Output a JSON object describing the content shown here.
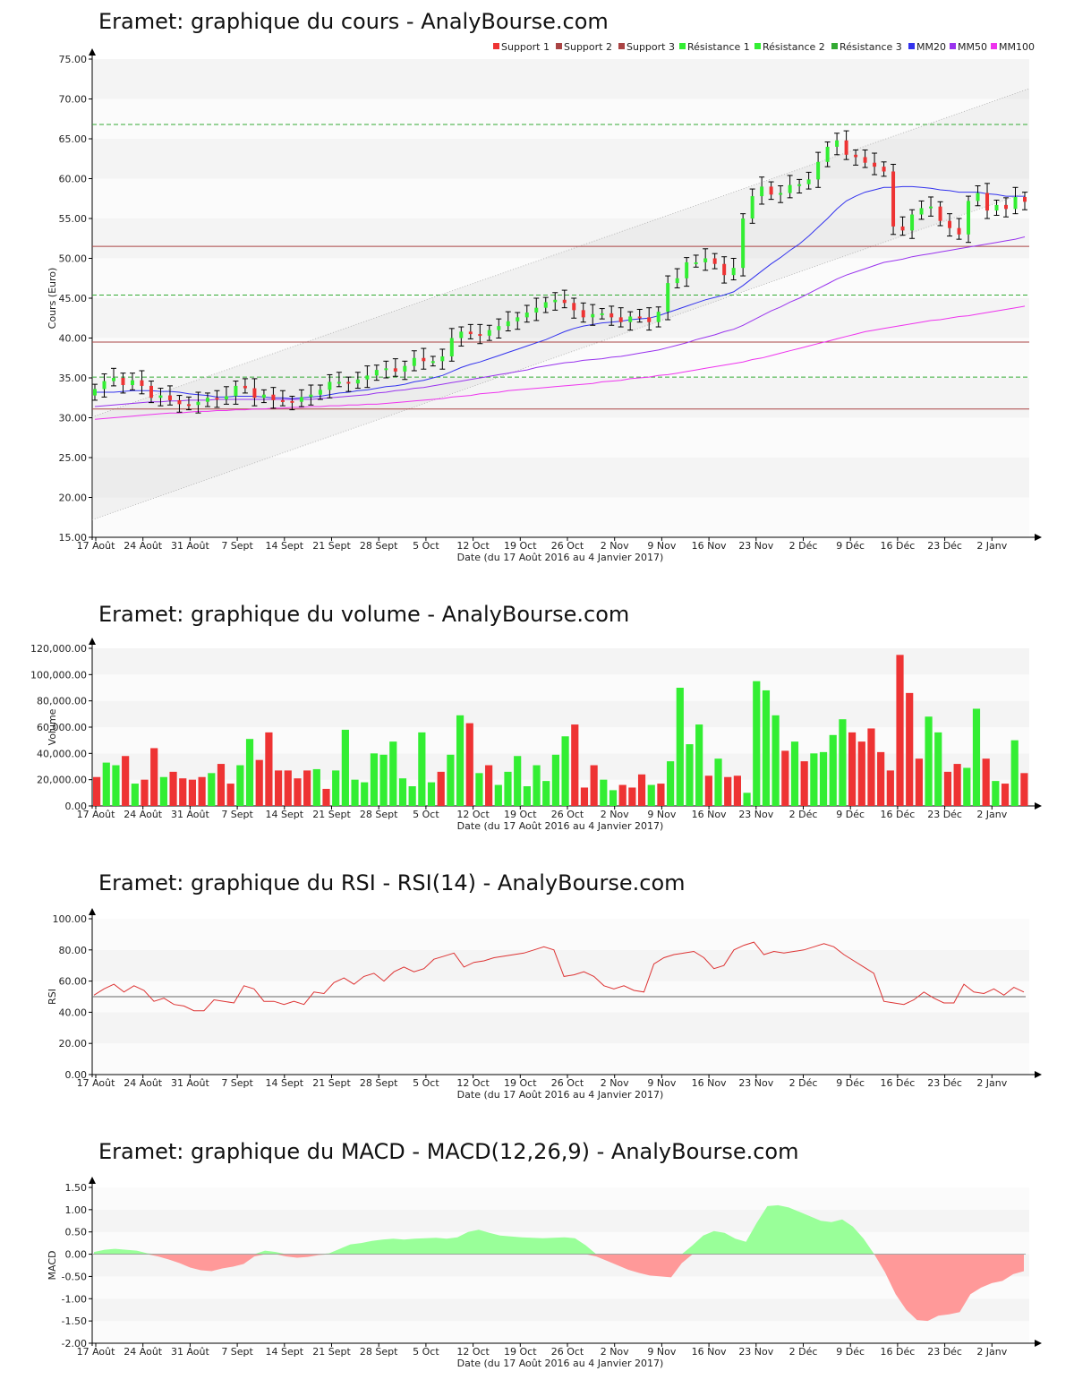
{
  "x_axis": {
    "ticks": [
      "17 Août",
      "24 Août",
      "31 Août",
      "7 Sept",
      "14 Sept",
      "21 Sept",
      "28 Sept",
      "5 Oct",
      "12 Oct",
      "19 Oct",
      "26 Oct",
      "2 Nov",
      "9 Nov",
      "16 Nov",
      "23 Nov",
      "2 Déc",
      "9 Déc",
      "16 Déc",
      "23 Déc",
      "2 Janv"
    ],
    "label": "Date (du 17 Août 2016 au 4 Janvier 2017)"
  },
  "colors": {
    "up": "#33ee33",
    "down": "#ee3333",
    "support": "#aa4444",
    "resistance": "#33aa33",
    "mm20": "#3333ee",
    "mm50": "#9933ee",
    "mm100": "#ee33ee"
  },
  "charts": {
    "price": {
      "title": "Eramet: graphique du cours - AnalyBourse.com"
    },
    "volume": {
      "title": "Eramet: graphique du volume - AnalyBourse.com"
    },
    "rsi": {
      "title": "Eramet: graphique du RSI - RSI(14) - AnalyBourse.com"
    },
    "macd": {
      "title": "Eramet: graphique du MACD - MACD(12,26,9) - AnalyBourse.com"
    }
  },
  "chart_data": [
    {
      "type": "candlestick",
      "title": "Eramet: graphique du cours - AnalyBourse.com",
      "ylabel": "Cours (Euro)",
      "xlabel": "Date (du 17 Août 2016 au 4 Janvier 2017)",
      "ylim": [
        15,
        75
      ],
      "yticks": [
        "15.00",
        "20.00",
        "25.00",
        "30.00",
        "35.00",
        "40.00",
        "45.00",
        "50.00",
        "55.00",
        "60.00",
        "65.00",
        "70.00",
        "75.00"
      ],
      "legend": [
        "Support 1",
        "Support 2",
        "Support 3",
        "Résistance 1",
        "Résistance 2",
        "Résistance 3",
        "MM20",
        "MM50",
        "MM100"
      ],
      "legend_position": "top-right",
      "support": [
        51.5,
        39.5,
        31.1
      ],
      "resistance": [
        66.8,
        45.4,
        35.1
      ],
      "closes": [
        33.6,
        34.6,
        35.0,
        34.1,
        34.7,
        34.0,
        32.5,
        32.8,
        32.2,
        31.7,
        31.6,
        32.0,
        32.5,
        32.3,
        32.7,
        34.0,
        33.7,
        32.5,
        32.9,
        32.2,
        32.1,
        32.0,
        32.6,
        32.9,
        33.5,
        34.5,
        34.5,
        34.3,
        34.8,
        35.3,
        36.0,
        36.2,
        35.8,
        36.5,
        37.5,
        37.1,
        37.1,
        37.7,
        40.0,
        40.8,
        40.5,
        40.3,
        41.0,
        41.5,
        42.1,
        42.6,
        43.2,
        43.8,
        44.5,
        44.8,
        44.4,
        43.5,
        42.6,
        43.0,
        43.1,
        42.6,
        42.0,
        42.7,
        42.6,
        42.0,
        43.3,
        46.9,
        47.5,
        49.5,
        49.5,
        50.0,
        49.3,
        47.9,
        48.8,
        55.0,
        57.8,
        59.0,
        58.0,
        58.2,
        59.2,
        59.3,
        59.9,
        62.1,
        64.0,
        64.8,
        63.0,
        62.7,
        62.0,
        61.5,
        60.9,
        54.0,
        53.5,
        55.5,
        56.3,
        56.5,
        54.7,
        53.8,
        53.0,
        57.2,
        58.2,
        56.0,
        56.7,
        56.2,
        57.7,
        57.1
      ],
      "mm20": [
        33.2,
        33.2,
        33.2,
        33.3,
        33.4,
        33.4,
        33.4,
        33.3,
        33.3,
        33.2,
        33.0,
        32.9,
        32.8,
        32.6,
        32.6,
        32.7,
        32.7,
        32.7,
        32.6,
        32.5,
        32.5,
        32.4,
        32.5,
        32.6,
        32.7,
        32.9,
        33.1,
        33.2,
        33.4,
        33.5,
        33.7,
        33.9,
        34.0,
        34.2,
        34.5,
        34.7,
        35.0,
        35.3,
        35.8,
        36.3,
        36.7,
        37.0,
        37.4,
        37.8,
        38.2,
        38.6,
        39.0,
        39.4,
        39.8,
        40.3,
        40.8,
        41.2,
        41.5,
        41.7,
        41.9,
        42.0,
        42.1,
        42.3,
        42.4,
        42.5,
        42.8,
        43.2,
        43.6,
        44.0,
        44.4,
        44.8,
        45.1,
        45.4,
        45.8,
        46.6,
        47.5,
        48.4,
        49.3,
        50.1,
        51.0,
        51.8,
        52.8,
        53.9,
        55.0,
        56.2,
        57.2,
        57.8,
        58.3,
        58.6,
        58.9,
        58.9,
        59.0,
        59.0,
        58.9,
        58.8,
        58.6,
        58.5,
        58.3,
        58.3,
        58.3,
        58.1,
        58.0,
        57.8,
        57.8,
        57.8
      ],
      "mm50": [
        31.4,
        31.5,
        31.6,
        31.7,
        31.8,
        31.9,
        32.0,
        32.0,
        32.1,
        32.1,
        32.2,
        32.2,
        32.2,
        32.3,
        32.3,
        32.3,
        32.3,
        32.3,
        32.3,
        32.3,
        32.3,
        32.3,
        32.3,
        32.3,
        32.4,
        32.5,
        32.6,
        32.7,
        32.8,
        32.9,
        33.1,
        33.2,
        33.4,
        33.5,
        33.7,
        33.8,
        34.0,
        34.2,
        34.4,
        34.6,
        34.8,
        35.0,
        35.2,
        35.4,
        35.6,
        35.8,
        36.0,
        36.3,
        36.5,
        36.7,
        36.9,
        37.0,
        37.2,
        37.3,
        37.4,
        37.6,
        37.7,
        37.9,
        38.1,
        38.3,
        38.5,
        38.8,
        39.1,
        39.4,
        39.8,
        40.1,
        40.4,
        40.8,
        41.1,
        41.6,
        42.2,
        42.8,
        43.4,
        43.9,
        44.5,
        45.0,
        45.6,
        46.2,
        46.8,
        47.4,
        47.9,
        48.3,
        48.7,
        49.1,
        49.5,
        49.7,
        49.9,
        50.2,
        50.4,
        50.6,
        50.8,
        51.0,
        51.2,
        51.4,
        51.6,
        51.8,
        52.0,
        52.2,
        52.4,
        52.7
      ],
      "mm100": [
        29.8,
        29.9,
        30.0,
        30.1,
        30.2,
        30.3,
        30.4,
        30.5,
        30.6,
        30.6,
        30.7,
        30.8,
        30.8,
        30.9,
        30.9,
        31.0,
        31.0,
        31.1,
        31.1,
        31.2,
        31.2,
        31.3,
        31.3,
        31.4,
        31.4,
        31.5,
        31.5,
        31.6,
        31.6,
        31.7,
        31.7,
        31.8,
        31.9,
        32.0,
        32.1,
        32.2,
        32.3,
        32.4,
        32.6,
        32.7,
        32.8,
        33.0,
        33.1,
        33.2,
        33.4,
        33.5,
        33.6,
        33.7,
        33.8,
        33.9,
        34.0,
        34.1,
        34.2,
        34.3,
        34.5,
        34.6,
        34.7,
        34.9,
        35.0,
        35.1,
        35.3,
        35.4,
        35.6,
        35.8,
        36.0,
        36.2,
        36.4,
        36.6,
        36.8,
        37.0,
        37.3,
        37.5,
        37.8,
        38.1,
        38.4,
        38.7,
        39.0,
        39.3,
        39.6,
        39.9,
        40.2,
        40.5,
        40.8,
        41.0,
        41.2,
        41.4,
        41.6,
        41.8,
        42.0,
        42.2,
        42.3,
        42.5,
        42.7,
        42.8,
        43.0,
        43.2,
        43.4,
        43.6,
        43.8,
        44.0
      ],
      "trend_channel": {
        "upper": [
          30.1,
          71.3
        ],
        "lower": [
          17.2,
          58.4
        ]
      }
    },
    {
      "type": "bar",
      "title": "Eramet: graphique du volume - AnalyBourse.com",
      "ylabel": "Volume",
      "xlabel": "Date (du 17 Août 2016 au 4 Janvier 2017)",
      "ylim": [
        0,
        120000
      ],
      "yticks": [
        "0.00",
        "20,000.00",
        "40,000.00",
        "60,000.00",
        "80,000.00",
        "100,000.00",
        "120,000.00"
      ],
      "values": [
        22000,
        33000,
        31000,
        38000,
        17000,
        20000,
        44000,
        22000,
        26000,
        21000,
        20000,
        22000,
        25000,
        32000,
        17000,
        31000,
        51000,
        35000,
        56000,
        27000,
        27000,
        21000,
        27000,
        28000,
        13000,
        27000,
        58000,
        20000,
        18000,
        40000,
        39000,
        49000,
        21000,
        15000,
        56000,
        18000,
        26000,
        39000,
        69000,
        63000,
        25000,
        31000,
        16000,
        26000,
        38000,
        15000,
        31000,
        19000,
        39000,
        53000,
        62000,
        14000,
        31000,
        20000,
        12000,
        16000,
        14000,
        24000,
        16000,
        17000,
        34000,
        90000,
        47000,
        62000,
        23000,
        36000,
        22000,
        23000,
        10000,
        95000,
        88000,
        69000,
        42000,
        49000,
        34000,
        40000,
        41000,
        54000,
        66000,
        56000,
        49000,
        59000,
        41000,
        27000,
        115000,
        86000,
        36000,
        68000,
        56000,
        26000,
        32000,
        29000,
        74000,
        36000,
        19000,
        17000,
        50000,
        25000
      ],
      "up": [
        0,
        1,
        1,
        0,
        1,
        0,
        0,
        1,
        0,
        0,
        0,
        0,
        1,
        0,
        0,
        1,
        1,
        0,
        0,
        0,
        0,
        0,
        0,
        1,
        0,
        1,
        1,
        1,
        1,
        1,
        1,
        1,
        1,
        1,
        1,
        1,
        0,
        1,
        1,
        0,
        1,
        0,
        1,
        1,
        1,
        1,
        1,
        1,
        1,
        1,
        0,
        0,
        0,
        1,
        1,
        0,
        0,
        0,
        1,
        0,
        1,
        1,
        1,
        1,
        0,
        1,
        0,
        0,
        1,
        1,
        1,
        1,
        0,
        1,
        0,
        1,
        1,
        1,
        1,
        0,
        0,
        0,
        0,
        0,
        0,
        0,
        0,
        1,
        1,
        0,
        0,
        1,
        1,
        0,
        1,
        0,
        1,
        0
      ]
    },
    {
      "type": "line",
      "title": "Eramet: graphique du RSI - RSI(14) - AnalyBourse.com",
      "ylabel": "RSI",
      "xlabel": "Date (du 17 Août 2016 au 4 Janvier 2017)",
      "ylim": [
        0,
        100
      ],
      "yticks": [
        "0.00",
        "20.00",
        "40.00",
        "60.00",
        "80.00",
        "100.00"
      ],
      "reference": 50,
      "values": [
        51,
        55,
        58,
        53,
        57,
        54,
        47,
        49,
        45,
        44,
        41,
        41,
        48,
        47,
        46,
        57,
        55,
        47,
        47,
        45,
        47,
        45,
        53,
        52,
        59,
        62,
        58,
        63,
        65,
        60,
        66,
        69,
        66,
        68,
        74,
        76,
        78,
        69,
        72,
        73,
        75,
        76,
        77,
        78,
        80,
        82,
        80,
        63,
        64,
        66,
        63,
        57,
        55,
        57,
        54,
        53,
        71,
        75,
        77,
        78,
        79,
        75,
        68,
        70,
        80,
        83,
        85,
        77,
        79,
        78,
        79,
        80,
        82,
        84,
        82,
        77,
        73,
        69,
        65,
        47,
        46,
        45,
        48,
        53,
        49,
        46,
        46,
        58,
        53,
        52,
        55,
        51,
        56,
        53
      ],
      "color": "#dd3333"
    },
    {
      "type": "area",
      "title": "Eramet: graphique du MACD - MACD(12,26,9) - AnalyBourse.com",
      "ylabel": "MACD",
      "xlabel": "Date (du 17 Août 2016 au 4 Janvier 2017)",
      "ylim": [
        -2,
        1.5
      ],
      "yticks": [
        "-2.00",
        "-1.50",
        "-1.00",
        "-0.50",
        "0.00",
        "0.50",
        "1.00",
        "1.50"
      ],
      "values": [
        0.05,
        0.1,
        0.12,
        0.1,
        0.08,
        0.02,
        -0.05,
        -0.12,
        -0.2,
        -0.3,
        -0.36,
        -0.38,
        -0.32,
        -0.28,
        -0.22,
        -0.05,
        0.08,
        0.05,
        -0.05,
        -0.08,
        -0.06,
        -0.02,
        0.02,
        0.12,
        0.22,
        0.25,
        0.3,
        0.33,
        0.35,
        0.33,
        0.35,
        0.36,
        0.37,
        0.35,
        0.38,
        0.5,
        0.55,
        0.48,
        0.42,
        0.4,
        0.38,
        0.37,
        0.36,
        0.37,
        0.38,
        0.36,
        0.2,
        -0.05,
        -0.15,
        -0.25,
        -0.35,
        -0.42,
        -0.48,
        -0.5,
        -0.52,
        -0.2,
        0.2,
        0.42,
        0.52,
        0.48,
        0.35,
        0.28,
        0.7,
        1.08,
        1.1,
        1.05,
        0.95,
        0.85,
        0.75,
        0.72,
        0.78,
        0.62,
        0.35,
        0.0,
        -0.4,
        -0.9,
        -1.25,
        -1.48,
        -1.5,
        -1.38,
        -1.35,
        -1.3,
        -0.9,
        -0.75,
        -0.65,
        -0.6,
        -0.45,
        -0.38
      ],
      "positive_color": "#99ff99",
      "negative_color": "#ff9999"
    }
  ]
}
